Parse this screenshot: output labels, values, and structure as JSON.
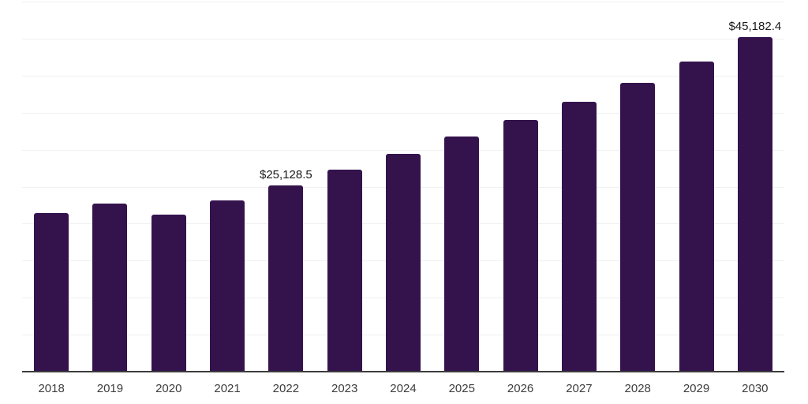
{
  "chart_data": {
    "type": "bar",
    "title": "",
    "xlabel": "",
    "ylabel": "",
    "categories": [
      "2018",
      "2019",
      "2020",
      "2021",
      "2022",
      "2023",
      "2024",
      "2025",
      "2026",
      "2027",
      "2028",
      "2029",
      "2030"
    ],
    "values": [
      21400,
      22740,
      21250,
      23100,
      25128.5,
      27270,
      29460,
      31760,
      33980,
      36420,
      39010,
      41940,
      45182.4
    ],
    "annotations": [
      {
        "index": 4,
        "category": "2022",
        "text": "$25,128.5"
      },
      {
        "index": 12,
        "category": "2030",
        "text": "$45,182.4"
      }
    ],
    "ylim": [
      0,
      50000
    ],
    "grid_step": 5000,
    "grid": "on",
    "legend": "none",
    "colors": {
      "bar": "#34134D",
      "axis": "#3C3C3C",
      "grid": "#F0F0F0",
      "tick_label": "#3D3D3D",
      "annotation": "#1A1A1A",
      "background": "#FFFFFF"
    }
  }
}
